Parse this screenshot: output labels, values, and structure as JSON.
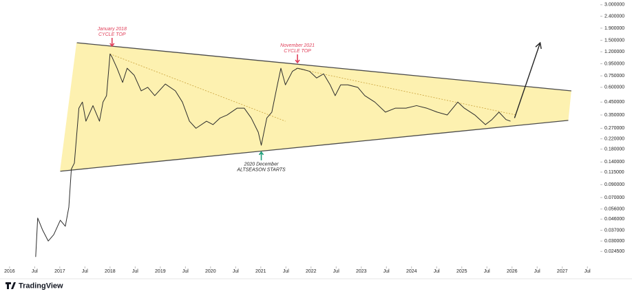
{
  "chart_data": {
    "type": "line",
    "log_scale": true,
    "color": "#2b2b2b",
    "x": [
      2016.52,
      2016.56,
      2016.66,
      2016.77,
      2016.88,
      2017.01,
      2017.11,
      2017.18,
      2017.23,
      2017.29,
      2017.38,
      2017.45,
      2017.52,
      2017.66,
      2017.79,
      2017.86,
      2017.93,
      2018.0,
      2018.04,
      2018.14,
      2018.25,
      2018.34,
      2018.48,
      2018.62,
      2018.75,
      2018.89,
      2019.1,
      2019.3,
      2019.44,
      2019.58,
      2019.71,
      2019.92,
      2020.05,
      2020.19,
      2020.33,
      2020.53,
      2020.67,
      2020.81,
      2020.95,
      2021.01,
      2021.12,
      2021.22,
      2021.32,
      2021.4,
      2021.49,
      2021.63,
      2021.73,
      2021.84,
      2021.97,
      2022.11,
      2022.25,
      2022.38,
      2022.48,
      2022.59,
      2022.73,
      2022.93,
      2023.07,
      2023.27,
      2023.48,
      2023.68,
      2023.89,
      2024.1,
      2024.3,
      2024.51,
      2024.71,
      2024.92,
      2025.05,
      2025.26,
      2025.47,
      2025.6,
      2025.74,
      2025.88,
      2025.97
    ],
    "values": [
      0.022,
      0.047,
      0.037,
      0.03,
      0.034,
      0.045,
      0.04,
      0.058,
      0.122,
      0.137,
      0.4,
      0.45,
      0.31,
      0.42,
      0.31,
      0.45,
      0.51,
      1.15,
      1.08,
      0.87,
      0.66,
      0.87,
      0.76,
      0.56,
      0.6,
      0.51,
      0.64,
      0.56,
      0.45,
      0.31,
      0.27,
      0.31,
      0.29,
      0.33,
      0.35,
      0.4,
      0.4,
      0.33,
      0.25,
      0.194,
      0.33,
      0.37,
      0.6,
      0.87,
      0.63,
      0.82,
      0.87,
      0.85,
      0.82,
      0.72,
      0.78,
      0.63,
      0.51,
      0.63,
      0.63,
      0.6,
      0.51,
      0.45,
      0.37,
      0.4,
      0.4,
      0.42,
      0.4,
      0.37,
      0.35,
      0.45,
      0.4,
      0.35,
      0.29,
      0.32,
      0.37,
      0.32,
      0.31
    ],
    "xlim": [
      2015.81,
      2027.73
    ],
    "ylim": [
      0.0188,
      3.29
    ],
    "xticks": [
      2016,
      {
        "value": 2016.5,
        "label": "Jul"
      },
      2017,
      {
        "value": 2017.5,
        "label": "Jul"
      },
      2018,
      {
        "value": 2018.5,
        "label": "Jul"
      },
      2019,
      {
        "value": 2019.5,
        "label": "Jul"
      },
      2020,
      {
        "value": 2020.5,
        "label": "Jul"
      },
      2021,
      {
        "value": 2021.5,
        "label": "Jul"
      },
      2022,
      {
        "value": 2022.5,
        "label": "Jul"
      },
      2023,
      {
        "value": 2023.5,
        "label": "Jul"
      },
      2024,
      {
        "value": 2024.5,
        "label": "Jul"
      },
      2025,
      {
        "value": 2025.5,
        "label": "Jul"
      },
      2026,
      {
        "value": 2026.5,
        "label": "Jul"
      },
      2027,
      {
        "value": 2027.5,
        "label": "Jul"
      }
    ],
    "yticks": [
      {
        "value": 3.0,
        "label": "3.000000"
      },
      {
        "value": 2.4,
        "label": "2.400000"
      },
      {
        "value": 1.9,
        "label": "1.900000"
      },
      {
        "value": 1.5,
        "label": "1.500000"
      },
      {
        "value": 1.2,
        "label": "1.200000"
      },
      {
        "value": 0.95,
        "label": "0.950000"
      },
      {
        "value": 0.75,
        "label": "0.750000"
      },
      {
        "value": 0.6,
        "label": "0.600000"
      },
      {
        "value": 0.45,
        "label": "0.450000"
      },
      {
        "value": 0.35,
        "label": "0.350000"
      },
      {
        "value": 0.27,
        "label": "0.270000"
      },
      {
        "value": 0.22,
        "label": "0.220000"
      },
      {
        "value": 0.18,
        "label": "0.180000"
      },
      {
        "value": 0.14,
        "label": "0.140000"
      },
      {
        "value": 0.115,
        "label": "0.115000"
      },
      {
        "value": 0.09,
        "label": "0.090000"
      },
      {
        "value": 0.07,
        "label": "0.070000"
      },
      {
        "value": 0.056,
        "label": "0.056000"
      },
      {
        "value": 0.046,
        "label": "0.046000"
      },
      {
        "value": 0.037,
        "label": "0.037000"
      },
      {
        "value": 0.03,
        "label": "0.030000"
      },
      {
        "value": 0.0245,
        "label": "0.024500"
      }
    ],
    "triangle": {
      "color": "#fdf1b0",
      "upper": {
        "x": [
          2017.34,
          2027.18
        ],
        "values": [
          1.43,
          0.56
        ]
      },
      "lower": {
        "x": [
          2017.01,
          2027.12
        ],
        "values": [
          0.117,
          0.315
        ]
      }
    },
    "dotted_lines": [
      {
        "x": [
          2018.0,
          2021.49
        ],
        "values": [
          1.15,
          0.31
        ]
      },
      {
        "x": [
          2021.7,
          2026.08
        ],
        "values": [
          0.87,
          0.35
        ]
      }
    ],
    "arrow": {
      "x": [
        2026.05,
        2026.56
      ],
      "values": [
        0.33,
        1.43
      ]
    },
    "annotations": [
      {
        "lines": [
          "January 2018",
          "CYCLE TOP"
        ],
        "x": 2018.04,
        "value": 1.34,
        "color": "#e0405a",
        "position": "above"
      },
      {
        "lines": [
          "November 2021",
          "CYCLE TOP"
        ],
        "x": 2021.73,
        "value": 0.97,
        "color": "#e0405a",
        "position": "above"
      },
      {
        "lines": [
          "2020 December",
          "ALTSEASON STARTS"
        ],
        "x": 2021.01,
        "value": 0.17,
        "color": "#1e9e7a",
        "position": "below"
      }
    ],
    "brand": "TradingView"
  }
}
